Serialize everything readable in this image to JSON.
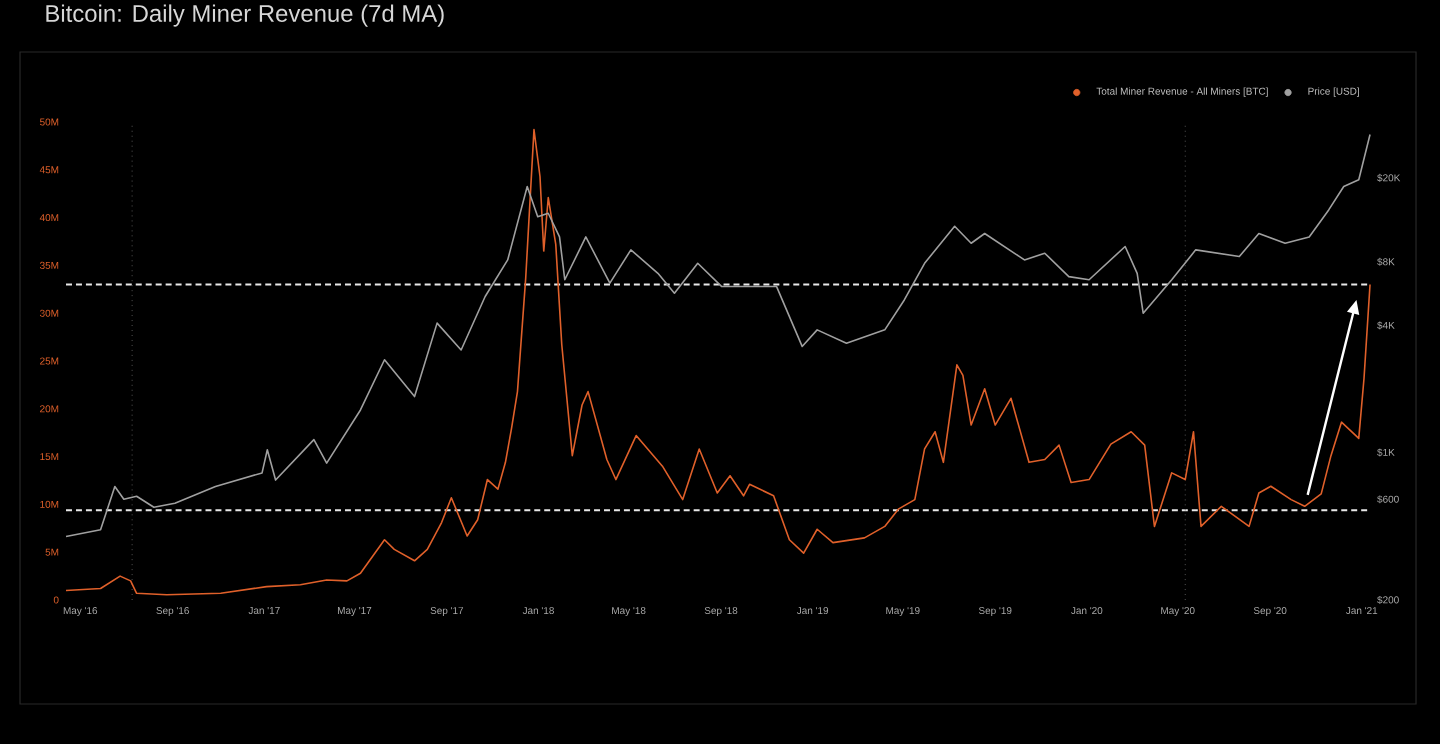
{
  "chart_data": {
    "type": "line",
    "title": "Bitcoin: Daily Miner Revenue (7d MA)",
    "xlim": [
      "2016-04-12",
      "2021-01-12"
    ],
    "xticks": [
      {
        "value": "2016-05-01",
        "label": "May '16"
      },
      {
        "value": "2016-09-01",
        "label": "Sep '16"
      },
      {
        "value": "2017-01-01",
        "label": "Jan '17"
      },
      {
        "value": "2017-05-01",
        "label": "May '17"
      },
      {
        "value": "2017-09-01",
        "label": "Sep '17"
      },
      {
        "value": "2018-01-01",
        "label": "Jan '18"
      },
      {
        "value": "2018-05-01",
        "label": "May '18"
      },
      {
        "value": "2018-09-01",
        "label": "Sep '18"
      },
      {
        "value": "2019-01-01",
        "label": "Jan '19"
      },
      {
        "value": "2019-05-01",
        "label": "May '19"
      },
      {
        "value": "2019-09-01",
        "label": "Sep '19"
      },
      {
        "value": "2020-01-01",
        "label": "Jan '20"
      },
      {
        "value": "2020-05-01",
        "label": "May '20"
      },
      {
        "value": "2020-09-01",
        "label": "Sep '20"
      },
      {
        "value": "2021-01-01",
        "label": "Jan '21"
      }
    ],
    "ylim": [
      0,
      50
    ],
    "yticks": [
      0,
      {
        "value": 5,
        "label": "5M"
      },
      {
        "value": 10,
        "label": "10M"
      },
      {
        "value": 15,
        "label": "15M"
      },
      {
        "value": 20,
        "label": "20M"
      },
      {
        "value": 25,
        "label": "25M"
      },
      {
        "value": 30,
        "label": "30M"
      },
      {
        "value": 35,
        "label": "35M"
      },
      {
        "value": 40,
        "label": "40M"
      },
      {
        "value": 45,
        "label": "45M"
      },
      {
        "value": 50,
        "label": "50M"
      }
    ],
    "y2lim": [
      200,
      36800
    ],
    "y2ticks": [
      {
        "value": 200,
        "label": "$200"
      },
      {
        "value": 600,
        "label": "$600"
      },
      {
        "value": 1000,
        "label": "$1K"
      },
      {
        "value": 4000,
        "label": "$4K"
      },
      {
        "value": 8000,
        "label": "$8K"
      },
      {
        "value": 20000,
        "label": "$20K"
      }
    ],
    "log": "y2",
    "legend": "top right",
    "series": [
      {
        "name": "Total Miner Revenue - All Miners [BTC]",
        "color": "#e0602a",
        "axis": "y",
        "x": [
          "2016-04-12",
          "2016-05-28",
          "2016-06-23",
          "2016-07-07",
          "2016-07-15",
          "2016-08-24",
          "2016-11-04",
          "2017-01-04",
          "2017-02-18",
          "2017-03-25",
          "2017-04-21",
          "2017-05-09",
          "2017-06-10",
          "2017-06-23",
          "2017-07-20",
          "2017-08-06",
          "2017-08-25",
          "2017-09-07",
          "2017-09-28",
          "2017-10-12",
          "2017-10-25",
          "2017-11-08",
          "2017-11-18",
          "2017-11-26",
          "2017-12-04",
          "2017-12-15",
          "2017-12-26",
          "2018-01-03",
          "2018-01-08",
          "2018-01-14",
          "2018-01-24",
          "2018-02-01",
          "2018-02-15",
          "2018-02-28",
          "2018-03-08",
          "2018-04-02",
          "2018-04-14",
          "2018-05-11",
          "2018-06-15",
          "2018-07-12",
          "2018-08-03",
          "2018-08-27",
          "2018-09-13",
          "2018-10-01",
          "2018-10-09",
          "2018-11-10",
          "2018-12-01",
          "2018-12-20",
          "2019-01-07",
          "2019-01-28",
          "2019-03-11",
          "2019-04-07",
          "2019-04-25",
          "2019-05-17",
          "2019-05-30",
          "2019-06-13",
          "2019-06-24",
          "2019-07-12",
          "2019-07-20",
          "2019-07-31",
          "2019-08-18",
          "2019-09-01",
          "2019-09-22",
          "2019-10-16",
          "2019-11-06",
          "2019-11-25",
          "2019-12-11",
          "2020-01-04",
          "2020-02-02",
          "2020-02-29",
          "2020-03-18",
          "2020-03-31",
          "2020-04-23",
          "2020-05-11",
          "2020-05-22",
          "2020-06-01",
          "2020-06-28",
          "2020-08-04",
          "2020-08-17",
          "2020-09-02",
          "2020-09-29",
          "2020-10-17",
          "2020-11-08",
          "2020-11-21",
          "2020-12-05",
          "2020-12-28",
          "2021-01-04",
          "2021-01-12"
        ],
        "values": [
          1.0,
          1.2,
          2.5,
          2.0,
          0.7,
          0.55,
          0.7,
          1.4,
          1.6,
          2.1,
          2.0,
          2.8,
          6.3,
          5.3,
          4.1,
          5.3,
          8.1,
          10.7,
          6.7,
          8.4,
          12.6,
          11.6,
          14.4,
          17.9,
          21.8,
          33.7,
          49.2,
          44.3,
          36.5,
          42.1,
          37.2,
          26.7,
          15.1,
          20.4,
          21.8,
          14.7,
          12.6,
          17.2,
          14.0,
          10.5,
          15.8,
          11.2,
          13.0,
          10.9,
          12.1,
          10.9,
          6.3,
          4.9,
          7.4,
          6.0,
          6.5,
          7.7,
          9.5,
          10.5,
          15.8,
          17.6,
          14.4,
          24.6,
          23.5,
          18.3,
          22.1,
          18.3,
          21.1,
          14.4,
          14.7,
          16.2,
          12.3,
          12.6,
          16.3,
          17.6,
          16.2,
          7.7,
          13.3,
          12.6,
          17.6,
          7.7,
          9.8,
          7.7,
          11.2,
          11.9,
          10.5,
          9.8,
          11.1,
          15.1,
          18.6,
          16.9,
          23.2,
          33.0
        ]
      },
      {
        "name": "Price [USD]",
        "color": "#a0a0a0",
        "axis": "y2",
        "x": [
          "2016-04-12",
          "2016-05-28",
          "2016-06-16",
          "2016-06-28",
          "2016-07-15",
          "2016-08-07",
          "2016-09-04",
          "2016-10-28",
          "2016-12-29",
          "2017-01-05",
          "2017-01-16",
          "2017-03-08",
          "2017-03-25",
          "2017-05-09",
          "2017-06-10",
          "2017-07-20",
          "2017-08-19",
          "2017-09-20",
          "2017-10-22",
          "2017-11-21",
          "2017-12-17",
          "2017-12-31",
          "2018-01-14",
          "2018-01-29",
          "2018-02-05",
          "2018-03-05",
          "2018-04-06",
          "2018-05-04",
          "2018-06-09",
          "2018-07-01",
          "2018-08-01",
          "2018-09-02",
          "2018-11-14",
          "2018-12-18",
          "2019-01-07",
          "2019-02-15",
          "2019-04-07",
          "2019-05-03",
          "2019-05-30",
          "2019-07-09",
          "2019-07-31",
          "2019-08-18",
          "2019-10-10",
          "2019-11-06",
          "2019-12-08",
          "2020-01-04",
          "2020-02-21",
          "2020-03-08",
          "2020-03-16",
          "2020-04-23",
          "2020-05-25",
          "2020-07-22",
          "2020-08-17",
          "2020-09-21",
          "2020-10-23",
          "2020-11-18",
          "2020-12-08",
          "2020-12-28",
          "2021-01-12"
        ],
        "values": [
          400,
          430,
          690,
          600,
          620,
          550,
          575,
          690,
          800,
          1030,
          740,
          1150,
          890,
          1590,
          2750,
          1840,
          4100,
          3060,
          5480,
          8170,
          18200,
          13100,
          13600,
          10500,
          6580,
          10500,
          6340,
          9120,
          7060,
          5680,
          7880,
          6110,
          6110,
          3180,
          3810,
          3290,
          3810,
          5280,
          7880,
          11800,
          9800,
          10900,
          8170,
          8790,
          6810,
          6580,
          9460,
          7060,
          4570,
          6580,
          9120,
          8480,
          10900,
          9800,
          10500,
          14100,
          18200,
          19600,
          32100
        ]
      }
    ],
    "ref_lines": [
      {
        "axis": "y",
        "value": 33,
        "color": "#e8e8e8",
        "line_style": "dashed"
      },
      {
        "axis": "y",
        "value": 9.4,
        "color": "#e8e8e8",
        "line_style": "dashed"
      },
      {
        "axis": "x",
        "value": "2016-07-09",
        "color": "#555555",
        "line_style": "dotted"
      },
      {
        "axis": "x",
        "value": "2020-05-11",
        "color": "#555555",
        "line_style": "dotted"
      }
    ]
  }
}
